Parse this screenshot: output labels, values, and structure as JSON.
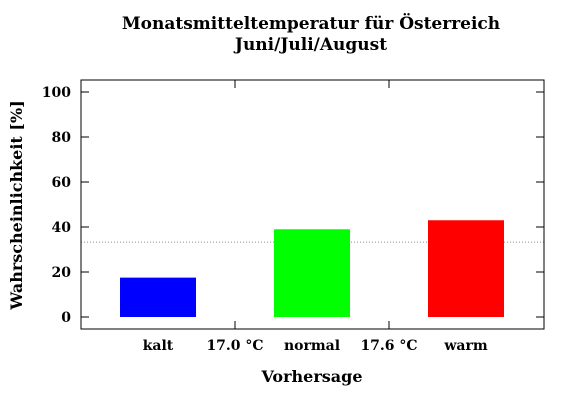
{
  "chart_data": {
    "type": "bar",
    "title": "Monatsmitteltemperatur für Österreich",
    "subtitle": "Juni/Juli/August",
    "xlabel": "Vorhersage",
    "ylabel": "Wahrscheinlichkeit [%]",
    "ylim": [
      0,
      100
    ],
    "yticks": [
      0,
      20,
      40,
      60,
      80,
      100
    ],
    "categories": [
      "kalt",
      "normal",
      "warm"
    ],
    "values": [
      17.5,
      39,
      43
    ],
    "colors": [
      "#0000ff",
      "#00ff00",
      "#ff0000"
    ],
    "separators": [
      "17.0 °C",
      "17.6 °C"
    ],
    "reference_line": 33.3,
    "grid": false
  }
}
